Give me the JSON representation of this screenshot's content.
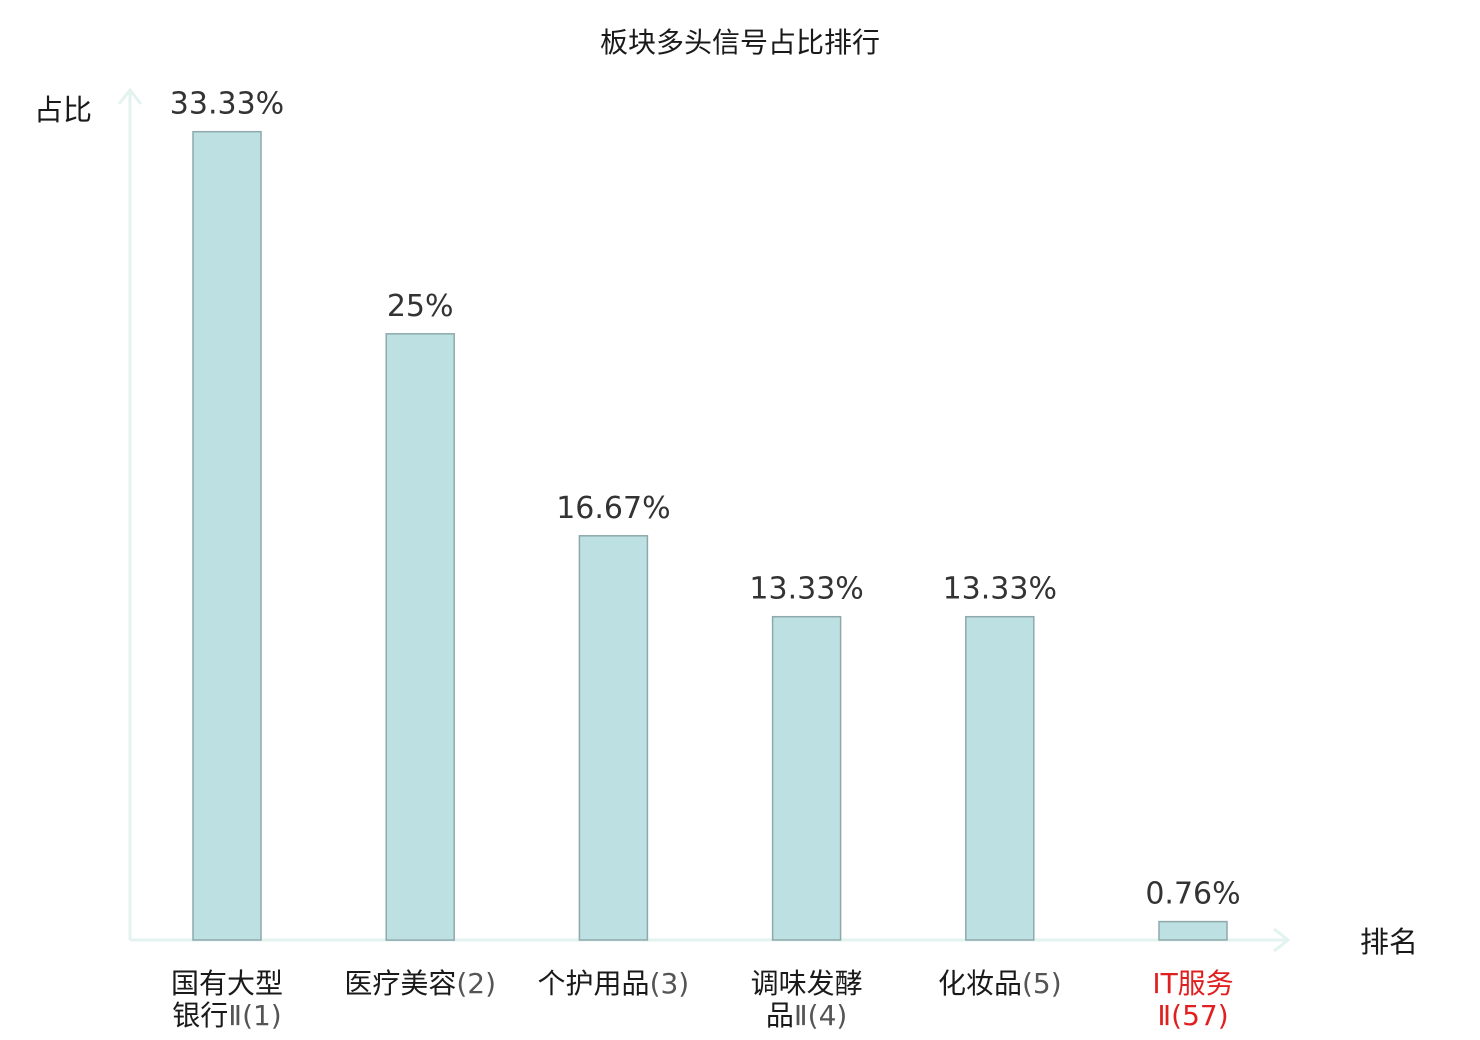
{
  "chart_data": {
    "type": "bar",
    "title": "板块多头信号占比排行",
    "ylabel": "占比",
    "xlabel": "排名",
    "ylim": [
      0,
      35
    ],
    "grid": false,
    "legend": "none",
    "categories": [
      {
        "lines": [
          {
            "name": "国有大型",
            "rank": ""
          },
          {
            "name": "银行",
            "rank": "Ⅱ(1)"
          }
        ],
        "highlight": false
      },
      {
        "lines": [
          {
            "name": "医疗美容",
            "rank": "(2)"
          }
        ],
        "highlight": false
      },
      {
        "lines": [
          {
            "name": "个护用品",
            "rank": "(3)"
          }
        ],
        "highlight": false
      },
      {
        "lines": [
          {
            "name": "调味发酵",
            "rank": ""
          },
          {
            "name": "品",
            "rank": "Ⅱ(4)"
          }
        ],
        "highlight": false
      },
      {
        "lines": [
          {
            "name": "化妆品",
            "rank": "(5)"
          }
        ],
        "highlight": false
      },
      {
        "lines": [
          {
            "name": "IT服务",
            "rank": ""
          },
          {
            "name": "",
            "rank": "Ⅱ(57)"
          }
        ],
        "highlight": true
      }
    ],
    "values": [
      33.33,
      25,
      16.67,
      13.33,
      13.33,
      0.76
    ],
    "value_labels": [
      "33.33%",
      "25%",
      "16.67%",
      "13.33%",
      "13.33%",
      "0.76%"
    ],
    "colors": {
      "bar": "#bde0e3",
      "bar_border": "#8fa9ab",
      "axis": "#e3f3f0",
      "highlight": "#e02020"
    }
  }
}
